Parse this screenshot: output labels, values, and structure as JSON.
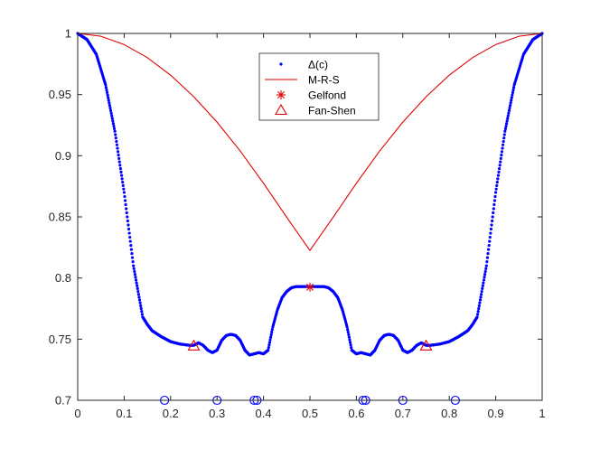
{
  "chart_data": {
    "type": "line",
    "xlim": [
      0,
      1
    ],
    "ylim": [
      0.7,
      1
    ],
    "x_ticks": [
      0,
      0.1,
      0.2,
      0.3,
      0.4,
      0.5,
      0.6,
      0.7,
      0.8,
      0.9,
      1
    ],
    "x_tick_labels": [
      "0",
      "0.1",
      "0.2",
      "0.3",
      "0.4",
      "0.5",
      "0.6",
      "0.7",
      "0.8",
      "0.9",
      "1"
    ],
    "y_ticks": [
      0.7,
      0.75,
      0.8,
      0.85,
      0.9,
      0.95,
      1
    ],
    "y_tick_labels": [
      "0.7",
      "0.75",
      "0.8",
      "0.85",
      "0.9",
      "0.95",
      "1"
    ],
    "grid": false,
    "legend_position": "top-center",
    "series": [
      {
        "name": "Δ(c)",
        "style": "dots",
        "color": "#0000ff",
        "x": [
          0,
          0.02,
          0.04,
          0.06,
          0.08,
          0.1,
          0.12,
          0.14,
          0.15,
          0.16,
          0.18,
          0.2,
          0.22,
          0.24,
          0.25,
          0.26,
          0.27,
          0.28,
          0.29,
          0.3,
          0.31,
          0.32,
          0.33,
          0.34,
          0.35,
          0.36,
          0.37,
          0.38,
          0.39,
          0.4,
          0.41,
          0.42,
          0.43,
          0.44,
          0.45,
          0.46,
          0.47,
          0.48,
          0.49,
          0.5,
          0.51,
          0.52,
          0.53,
          0.54,
          0.55,
          0.56,
          0.57,
          0.58,
          0.59,
          0.6,
          0.61,
          0.62,
          0.63,
          0.64,
          0.65,
          0.66,
          0.67,
          0.68,
          0.69,
          0.7,
          0.71,
          0.72,
          0.73,
          0.74,
          0.75,
          0.76,
          0.78,
          0.8,
          0.82,
          0.84,
          0.85,
          0.86,
          0.88,
          0.9,
          0.92,
          0.94,
          0.96,
          0.98,
          1
        ],
        "y": [
          1,
          0.995,
          0.983,
          0.958,
          0.92,
          0.87,
          0.81,
          0.768,
          0.762,
          0.757,
          0.752,
          0.748,
          0.746,
          0.745,
          0.745,
          0.747,
          0.745,
          0.741,
          0.739,
          0.741,
          0.749,
          0.753,
          0.754,
          0.753,
          0.749,
          0.741,
          0.737,
          0.738,
          0.739,
          0.738,
          0.741,
          0.76,
          0.774,
          0.784,
          0.789,
          0.792,
          0.793,
          0.793,
          0.793,
          0.793,
          0.793,
          0.793,
          0.793,
          0.792,
          0.789,
          0.784,
          0.774,
          0.76,
          0.741,
          0.738,
          0.739,
          0.738,
          0.737,
          0.741,
          0.749,
          0.753,
          0.754,
          0.753,
          0.749,
          0.741,
          0.739,
          0.741,
          0.745,
          0.747,
          0.745,
          0.745,
          0.746,
          0.748,
          0.752,
          0.757,
          0.762,
          0.768,
          0.81,
          0.87,
          0.92,
          0.958,
          0.983,
          0.995,
          1
        ]
      },
      {
        "name": "M-R-S",
        "style": "line",
        "color": "#e00000",
        "x": [
          0,
          0.05,
          0.1,
          0.15,
          0.2,
          0.25,
          0.3,
          0.35,
          0.4,
          0.45,
          0.5,
          0.55,
          0.6,
          0.65,
          0.7,
          0.75,
          0.8,
          0.85,
          0.9,
          0.95,
          1
        ],
        "y": [
          1,
          0.9977,
          0.9909,
          0.9802,
          0.9659,
          0.9482,
          0.9275,
          0.9038,
          0.8775,
          0.8497,
          0.8225,
          0.8497,
          0.8775,
          0.9038,
          0.9275,
          0.9482,
          0.9659,
          0.9802,
          0.9909,
          0.9977,
          1
        ]
      },
      {
        "name": "Gelfond",
        "style": "asterisk",
        "color": "#e00000",
        "x": [
          0.5
        ],
        "y": [
          0.7925
        ]
      },
      {
        "name": "Fan-Shen",
        "style": "triangle",
        "color": "#e00000",
        "x": [
          0.25,
          0.75
        ],
        "y": [
          0.7445,
          0.7445
        ]
      },
      {
        "style": "circle",
        "color": "#0000ff",
        "x": [
          0.187,
          0.3,
          0.38,
          0.386,
          0.614,
          0.62,
          0.7,
          0.813
        ],
        "y": [
          0.7,
          0.7,
          0.7,
          0.7,
          0.7,
          0.7,
          0.7,
          0.7
        ]
      }
    ]
  }
}
